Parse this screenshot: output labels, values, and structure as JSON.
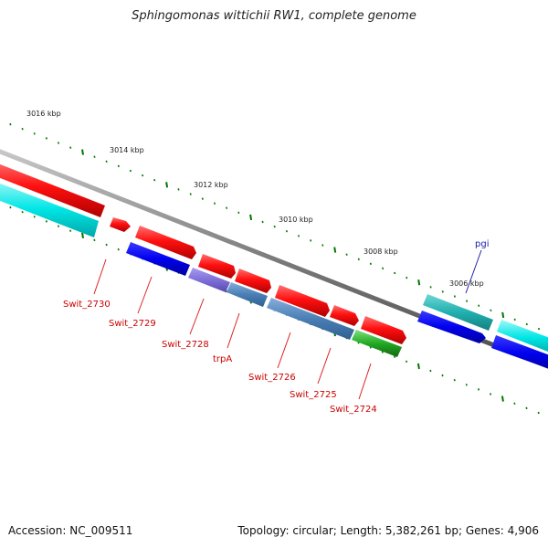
{
  "title": "Sphingomonas wittichii RW1, complete genome",
  "footer": {
    "accession": "Accession: NC_009511",
    "summary": "Topology: circular; Length: 5,382,261 bp; Genes: 4,906"
  },
  "ticks": [
    "3016 kbp",
    "3014 kbp",
    "3012 kbp",
    "3010 kbp",
    "3008 kbp",
    "3006 kbp"
  ],
  "genes": [
    {
      "label": "Swit_2730",
      "color": "#cc0000"
    },
    {
      "label": "Swit_2729",
      "color": "#cc0000"
    },
    {
      "label": "Swit_2728",
      "color": "#cc0000"
    },
    {
      "label": "trpA",
      "color": "#cc0000"
    },
    {
      "label": "Swit_2726",
      "color": "#cc0000"
    },
    {
      "label": "Swit_2725",
      "color": "#cc0000"
    },
    {
      "label": "Swit_2724",
      "color": "#cc0000"
    },
    {
      "label": "pgi",
      "color": "#0000aa"
    }
  ],
  "colors": {
    "backbone": "#808080",
    "cds": "#ff0000",
    "gene": "#0000ee",
    "cyan": "#00e0e0",
    "teal": "#20b0b0",
    "steel": "#4a7fb5",
    "purple": "#7f6fd8",
    "green": "#22aa22",
    "tick": "#007700"
  }
}
